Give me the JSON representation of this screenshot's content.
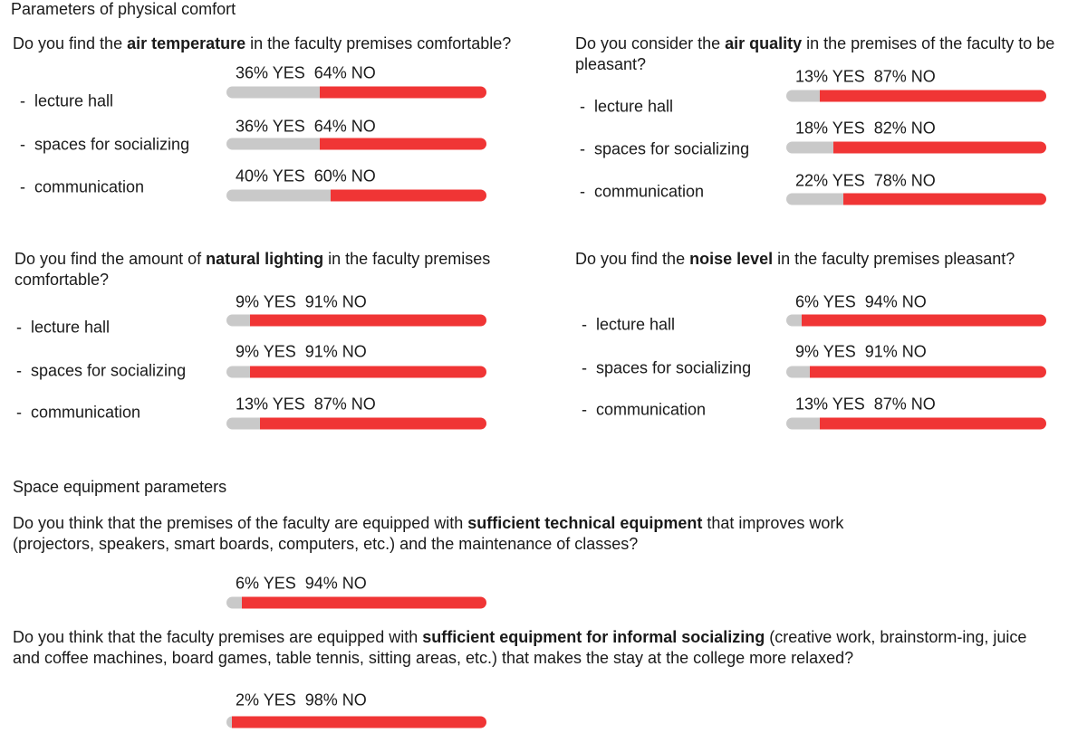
{
  "sections": [
    {
      "title": "Parameters of physical comfort",
      "questions": [
        {
          "text": [
            "Do you find the ",
            "air temperature",
            " in the faculty premises comfortable?"
          ],
          "items": [
            {
              "label": "lecture hall",
              "values": [
                36,
                64
              ],
              "value_labels": [
                "36% YES",
                "64% NO"
              ]
            },
            {
              "label": "spaces for socializing",
              "values": [
                36,
                64
              ],
              "value_labels": [
                "36% YES",
                "64% NO"
              ]
            },
            {
              "label": "communication",
              "values": [
                40,
                60
              ],
              "value_labels": [
                "40% YES",
                "60% NO"
              ]
            }
          ]
        },
        {
          "text": [
            "Do you consider the ",
            "air quality",
            " in the premises of the faculty to be pleasant?"
          ],
          "items": [
            {
              "label": "lecture hall",
              "values": [
                13,
                87
              ],
              "value_labels": [
                "13% YES",
                "87% NO"
              ]
            },
            {
              "label": "spaces for socializing",
              "values": [
                18,
                82
              ],
              "value_labels": [
                "18% YES",
                "82% NO"
              ]
            },
            {
              "label": "communication",
              "values": [
                22,
                78
              ],
              "value_labels": [
                "22% YES",
                "78% NO"
              ]
            }
          ]
        },
        {
          "text": [
            "Do you find the amount of ",
            "natural lighting",
            " in the faculty premises comfortable?"
          ],
          "items": [
            {
              "label": "lecture hall",
              "values": [
                9,
                91
              ],
              "value_labels": [
                "9% YES",
                "91% NO"
              ]
            },
            {
              "label": "spaces for socializing",
              "values": [
                9,
                91
              ],
              "value_labels": [
                "9% YES",
                "91% NO"
              ]
            },
            {
              "label": "communication",
              "values": [
                13,
                87
              ],
              "value_labels": [
                "13% YES",
                "87% NO"
              ]
            }
          ]
        },
        {
          "text": [
            "Do you find the ",
            "noise level",
            " in the faculty premises pleasant?"
          ],
          "items": [
            {
              "label": "lecture hall",
              "values": [
                6,
                94
              ],
              "value_labels": [
                "6% YES",
                "94% NO"
              ]
            },
            {
              "label": "spaces for socializing",
              "values": [
                9,
                91
              ],
              "value_labels": [
                "9% YES",
                "91% NO"
              ]
            },
            {
              "label": "communication",
              "values": [
                13,
                87
              ],
              "value_labels": [
                "13% YES",
                "87% NO"
              ]
            }
          ]
        }
      ]
    },
    {
      "title": "Space equipment parameters",
      "questions": [
        {
          "text": [
            "Do you think that the premises of the faculty are equipped with ",
            "sufficient technical equipment",
            " that improves work (projectors, speakers, smart boards, computers, etc.) and the maintenance of classes?"
          ],
          "items": [
            {
              "values": [
                6,
                94
              ],
              "value_labels": [
                "6% YES",
                "94% NO"
              ]
            }
          ]
        },
        {
          "text": [
            "Do you think that the faculty premises are equipped with ",
            "sufficient equipment for informal socializing",
            " (creative work, brainstorm-ing, juice and coffee machines, board games, table tennis, sitting areas, etc.) that makes the stay at the college more relaxed?"
          ],
          "items": [
            {
              "values": [
                2,
                98
              ],
              "value_labels": [
                "2% YES",
                "98% NO"
              ]
            }
          ]
        }
      ]
    }
  ]
}
